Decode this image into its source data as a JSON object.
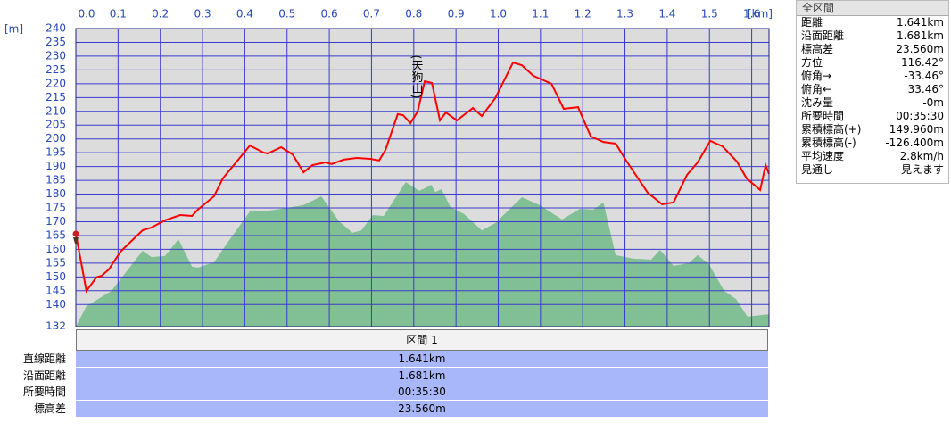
{
  "chart_data": {
    "type": "profile",
    "x_label": "[km]",
    "y_label": "[m]",
    "annotation": "(天狗山)",
    "xlim": [
      0,
      1.641
    ],
    "xticks": [
      {
        "value": 0,
        "label": "0.0"
      },
      0.1,
      0.2,
      0.3,
      0.4,
      0.5,
      0.6,
      0.7,
      0.8,
      0.9,
      {
        "value": 1,
        "label": "1.0"
      },
      1.1,
      1.2,
      1.3,
      1.4,
      1.5,
      1.6
    ],
    "ylim": [
      132,
      240
    ],
    "yticks": [
      132,
      140,
      145,
      150,
      155,
      160,
      165,
      170,
      175,
      180,
      185,
      190,
      195,
      200,
      205,
      210,
      215,
      220,
      225,
      230,
      235,
      240
    ],
    "grid": true,
    "series": [
      {
        "color": "#ff0000",
        "kind": "line",
        "x": [
          0,
          0.025,
          0.049,
          0.061,
          0.078,
          0.106,
          0.158,
          0.179,
          0.211,
          0.247,
          0.275,
          0.289,
          0.327,
          0.348,
          0.412,
          0.444,
          0.454,
          0.486,
          0.513,
          0.539,
          0.56,
          0.591,
          0.606,
          0.634,
          0.665,
          0.697,
          0.718,
          0.733,
          0.762,
          0.775,
          0.792,
          0.809,
          0.826,
          0.843,
          0.862,
          0.876,
          0.902,
          0.94,
          0.961,
          0.993,
          1.035,
          1.056,
          1.083,
          1.126,
          1.155,
          1.189,
          1.219,
          1.249,
          1.278,
          1.303,
          1.354,
          1.388,
          1.415,
          1.447,
          1.472,
          1.502,
          1.531,
          1.565,
          1.588,
          1.62,
          1.633,
          1.641
        ],
        "values": [
          165.6,
          144.9,
          149.9,
          150.4,
          152.7,
          159.2,
          166.9,
          167.9,
          170.5,
          172.4,
          172.1,
          174.4,
          179.2,
          185.7,
          197.6,
          195.1,
          194.7,
          197.0,
          194.4,
          187.9,
          190.5,
          191.5,
          190.9,
          192.5,
          193.1,
          192.8,
          192.2,
          196.0,
          209.0,
          208.6,
          205.7,
          209.9,
          220.9,
          220.3,
          206.7,
          209.6,
          206.7,
          211.2,
          208.3,
          214.8,
          227.7,
          226.7,
          222.9,
          220.0,
          210.9,
          211.5,
          200.9,
          198.9,
          198.3,
          192.1,
          180.5,
          176.3,
          177.0,
          187.0,
          191.5,
          199.3,
          197.3,
          191.8,
          185.7,
          181.5,
          190.5,
          187.3
        ]
      },
      {
        "color": "#80c094",
        "kind": "area",
        "x": [
          0,
          0.025,
          0.084,
          0.158,
          0.179,
          0.211,
          0.243,
          0.275,
          0.289,
          0.327,
          0.359,
          0.412,
          0.444,
          0.486,
          0.539,
          0.581,
          0.623,
          0.655,
          0.676,
          0.703,
          0.729,
          0.781,
          0.813,
          0.826,
          0.841,
          0.851,
          0.866,
          0.887,
          0.919,
          0.961,
          0.993,
          1.056,
          1.098,
          1.151,
          1.193,
          1.225,
          1.249,
          1.278,
          1.32,
          1.362,
          1.383,
          1.415,
          1.451,
          1.472,
          1.499,
          1.535,
          1.563,
          1.59,
          1.641
        ],
        "values": [
          132.0,
          139.4,
          144.9,
          159.5,
          157.2,
          157.6,
          163.7,
          153.7,
          153.4,
          155.3,
          162.4,
          173.7,
          173.7,
          174.7,
          176.0,
          179.2,
          170.2,
          166.0,
          166.9,
          172.4,
          172.1,
          184.4,
          181.2,
          182.1,
          183.4,
          180.8,
          181.8,
          175.3,
          172.8,
          166.9,
          169.5,
          178.9,
          176.0,
          170.8,
          174.7,
          174.4,
          177.0,
          157.9,
          156.6,
          156.3,
          159.8,
          154.0,
          155.0,
          157.9,
          154.6,
          144.9,
          142.0,
          135.6,
          136.5
        ]
      }
    ]
  },
  "section_table": {
    "header": "区間 1",
    "rows": [
      [
        "直線距離",
        "1.641km"
      ],
      [
        "沿面距離",
        "1.681km"
      ],
      [
        "所要時間",
        "00:35:30"
      ],
      [
        "標高差",
        "23.560m"
      ]
    ]
  },
  "summary_panel": {
    "title": "全区間",
    "rows": [
      [
        "距離",
        "1.641km"
      ],
      [
        "沿面距離",
        "1.681km"
      ],
      [
        "標高差",
        "23.560m"
      ],
      [
        "方位",
        "116.42°"
      ],
      [
        "俯角→",
        "-33.46°"
      ],
      [
        "俯角←",
        "33.46°"
      ],
      [
        "沈み量",
        "-0m"
      ],
      [
        "所要時間",
        "00:35:30"
      ],
      [
        "累積標高(+)",
        "149.960m"
      ],
      [
        "累積標高(-)",
        "-126.400m"
      ],
      [
        "平均速度",
        "2.8km/h"
      ],
      [
        "見通し",
        "見えます"
      ]
    ]
  }
}
